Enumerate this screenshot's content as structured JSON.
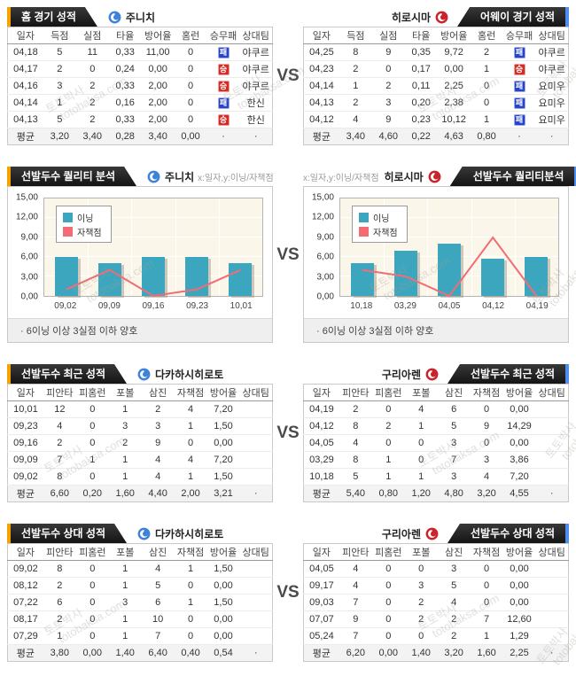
{
  "vs_label": "VS",
  "badges": {
    "win": "승",
    "loss": "패"
  },
  "colors": {
    "accent_left": "#f5a200",
    "accent_right": "#4d8ef0",
    "bar": "#3ca6be",
    "line": "#f26b75",
    "win_badge": "#d42a23",
    "loss_badge": "#2743c8"
  },
  "watermark": {
    "line1": "토토박사",
    "line2": "totobaksa.com"
  },
  "sections": [
    {
      "type": "games",
      "left": {
        "title": "홈 경기 성적",
        "team": "주니치",
        "columns": [
          "일자",
          "득점",
          "실점",
          "타율",
          "방어율",
          "홈런",
          "승무패",
          "상대팀"
        ],
        "badge_col": 6,
        "rows": [
          [
            "04,18",
            "5",
            "11",
            "0,33",
            "11,00",
            "0",
            "L",
            "야쿠르"
          ],
          [
            "04,17",
            "2",
            "0",
            "0,24",
            "0,00",
            "0",
            "W",
            "야쿠르"
          ],
          [
            "04,16",
            "3",
            "2",
            "0,33",
            "2,00",
            "0",
            "W",
            "야쿠르"
          ],
          [
            "04,14",
            "1",
            "2",
            "0,16",
            "2,00",
            "0",
            "L",
            "한신"
          ],
          [
            "04,13",
            "5",
            "2",
            "0,33",
            "2,00",
            "0",
            "W",
            "한신"
          ]
        ],
        "avg": [
          "평균",
          "3,20",
          "3,40",
          "0,28",
          "3,40",
          "0,00",
          "·",
          "·"
        ]
      },
      "right": {
        "title": "어웨이 경기 성적",
        "team": "히로시마",
        "columns": [
          "일자",
          "득점",
          "실점",
          "타율",
          "방어율",
          "홈런",
          "승무패",
          "상대팀"
        ],
        "badge_col": 6,
        "rows": [
          [
            "04,25",
            "8",
            "9",
            "0,35",
            "9,72",
            "2",
            "L",
            "야쿠르"
          ],
          [
            "04,23",
            "2",
            "0",
            "0,17",
            "0,00",
            "1",
            "W",
            "야쿠르"
          ],
          [
            "04,14",
            "1",
            "2",
            "0,11",
            "2,25",
            "0",
            "L",
            "요미우"
          ],
          [
            "04,13",
            "2",
            "3",
            "0,20",
            "2,38",
            "0",
            "L",
            "요미우"
          ],
          [
            "04,12",
            "4",
            "9",
            "0,23",
            "10,12",
            "1",
            "L",
            "요미우"
          ]
        ],
        "avg": [
          "평균",
          "3,40",
          "4,60",
          "0,22",
          "4,63",
          "0,80",
          "·",
          "·"
        ]
      }
    },
    {
      "type": "chart",
      "left": {
        "title": "선발두수 퀄리티 분석",
        "team": "주니치",
        "axis_hint": "x:일자,y:이닝/자책점",
        "note": "· 6이닝 이상 3실점 이하 양호",
        "chart_data": {
          "type": "bar+line",
          "categories": [
            "09,02",
            "09,09",
            "09,16",
            "09,23",
            "10,01"
          ],
          "series": [
            {
              "name": "이닝",
              "type": "bar",
              "values": [
                6,
                5,
                6,
                6,
                5
              ]
            },
            {
              "name": "자책점",
              "type": "line",
              "values": [
                1,
                4,
                0,
                1,
                4
              ]
            }
          ],
          "ylim": [
            0,
            15
          ],
          "yticks": [
            "0,00",
            "3,00",
            "6,00",
            "9,00",
            "12,00",
            "15,00"
          ],
          "legend_position": "top-left",
          "grid": true
        }
      },
      "right": {
        "title": "선발두수 퀄리티분석",
        "team": "히로시마",
        "axis_hint": "x:일자,y:이닝/자책점",
        "note": "· 6이닝 이상 3실점 이하 양호",
        "chart_data": {
          "type": "bar+line",
          "categories": [
            "10,18",
            "03,29",
            "04,05",
            "04,12",
            "04,19"
          ],
          "series": [
            {
              "name": "이닝",
              "type": "bar",
              "values": [
                5,
                7,
                8,
                5.67,
                6
              ]
            },
            {
              "name": "자책점",
              "type": "line",
              "values": [
                4,
                3,
                0,
                9,
                0
              ]
            }
          ],
          "ylim": [
            0,
            15
          ],
          "yticks": [
            "0,00",
            "3,00",
            "6,00",
            "9,00",
            "12,00",
            "15,00"
          ],
          "legend_position": "top-left",
          "grid": true
        }
      }
    },
    {
      "type": "pitcher",
      "left": {
        "title": "선발두수 최근 성적",
        "team": "다카하시히로토",
        "columns": [
          "일자",
          "피안타",
          "피홈런",
          "포볼",
          "삼진",
          "자책점",
          "방어율",
          "상대팀"
        ],
        "rows": [
          [
            "10,01",
            "12",
            "0",
            "1",
            "2",
            "4",
            "7,20",
            ""
          ],
          [
            "09,23",
            "4",
            "0",
            "3",
            "3",
            "1",
            "1,50",
            ""
          ],
          [
            "09,16",
            "2",
            "0",
            "2",
            "9",
            "0",
            "0,00",
            ""
          ],
          [
            "09,09",
            "7",
            "1",
            "1",
            "4",
            "4",
            "7,20",
            ""
          ],
          [
            "09,02",
            "8",
            "0",
            "1",
            "4",
            "1",
            "1,50",
            ""
          ]
        ],
        "avg": [
          "평균",
          "6,60",
          "0,20",
          "1,60",
          "4,40",
          "2,00",
          "3,21",
          "·"
        ]
      },
      "right": {
        "title": "선발두수 최근 성적",
        "team": "구리아렌",
        "columns": [
          "일자",
          "피안타",
          "피홈런",
          "포볼",
          "삼진",
          "자책점",
          "방어율",
          "상대팀"
        ],
        "rows": [
          [
            "04,19",
            "2",
            "0",
            "4",
            "6",
            "0",
            "0,00",
            ""
          ],
          [
            "04,12",
            "8",
            "2",
            "1",
            "5",
            "9",
            "14,29",
            ""
          ],
          [
            "04,05",
            "4",
            "0",
            "0",
            "3",
            "0",
            "0,00",
            ""
          ],
          [
            "03,29",
            "8",
            "1",
            "0",
            "7",
            "3",
            "3,86",
            ""
          ],
          [
            "10,18",
            "5",
            "1",
            "1",
            "3",
            "4",
            "7,20",
            ""
          ]
        ],
        "avg": [
          "평균",
          "5,40",
          "0,80",
          "1,20",
          "4,80",
          "3,20",
          "4,55",
          "·"
        ]
      }
    },
    {
      "type": "pitcher",
      "left": {
        "title": "선발두수 상대 성적",
        "team": "다카하시히로토",
        "columns": [
          "일자",
          "피안타",
          "피홈런",
          "포볼",
          "삼진",
          "자책점",
          "방어율",
          "상대팀"
        ],
        "rows": [
          [
            "09,02",
            "8",
            "0",
            "1",
            "4",
            "1",
            "1,50",
            ""
          ],
          [
            "08,12",
            "2",
            "0",
            "1",
            "5",
            "0",
            "0,00",
            ""
          ],
          [
            "07,22",
            "6",
            "0",
            "3",
            "6",
            "1",
            "1,50",
            ""
          ],
          [
            "08,17",
            "2",
            "0",
            "1",
            "10",
            "0",
            "0,00",
            ""
          ],
          [
            "07,29",
            "1",
            "0",
            "1",
            "7",
            "0",
            "0,00",
            ""
          ]
        ],
        "avg": [
          "평균",
          "3,80",
          "0,00",
          "1,40",
          "6,40",
          "0,40",
          "0,54",
          "·"
        ]
      },
      "right": {
        "title": "선발두수 상대 성적",
        "team": "구리아렌",
        "columns": [
          "일자",
          "피안타",
          "피홈런",
          "포볼",
          "삼진",
          "자책점",
          "방어율",
          "상대팀"
        ],
        "rows": [
          [
            "04,05",
            "4",
            "0",
            "0",
            "3",
            "0",
            "0,00",
            ""
          ],
          [
            "09,17",
            "4",
            "0",
            "3",
            "5",
            "0",
            "0,00",
            ""
          ],
          [
            "09,03",
            "7",
            "0",
            "2",
            "4",
            "0",
            "0,00",
            ""
          ],
          [
            "07,07",
            "9",
            "0",
            "2",
            "2",
            "7",
            "12,60",
            ""
          ],
          [
            "05,24",
            "7",
            "0",
            "0",
            "2",
            "1",
            "1,29",
            ""
          ]
        ],
        "avg": [
          "평균",
          "6,20",
          "0,00",
          "1,40",
          "3,20",
          "1,60",
          "2,25",
          "·"
        ]
      }
    }
  ]
}
